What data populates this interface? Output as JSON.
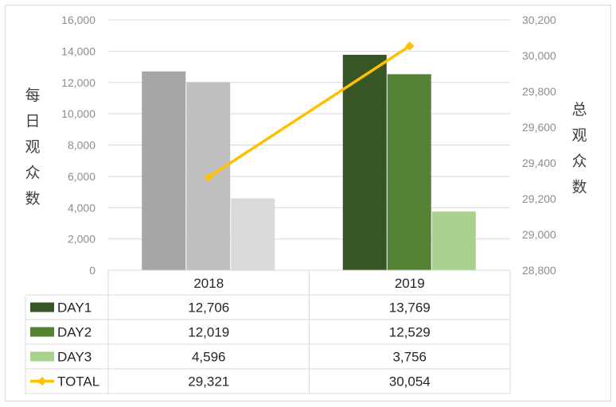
{
  "chart_data": {
    "type": "bar",
    "categories": [
      "2018",
      "2019"
    ],
    "series": [
      {
        "name": "DAY1",
        "values": [
          12706,
          13769
        ],
        "axis": "left",
        "colors": [
          "#a6a6a6",
          "#375623"
        ],
        "legend_color": "#375623"
      },
      {
        "name": "DAY2",
        "values": [
          12019,
          12529
        ],
        "axis": "left",
        "colors": [
          "#bfbfbf",
          "#548235"
        ],
        "legend_color": "#548235"
      },
      {
        "name": "DAY3",
        "values": [
          4596,
          3756
        ],
        "axis": "left",
        "colors": [
          "#d9d9d9",
          "#a9d18e"
        ],
        "legend_color": "#a9d18e"
      },
      {
        "name": "TOTAL",
        "values": [
          29321,
          30054
        ],
        "axis": "right",
        "type": "line",
        "color": "#ffc000",
        "legend_color": "#ffc000"
      }
    ],
    "table_values": [
      [
        "12,706",
        "13,769"
      ],
      [
        "12,019",
        "12,529"
      ],
      [
        "4,596",
        "3,756"
      ],
      [
        "29,321",
        "30,054"
      ]
    ],
    "y_left": {
      "title": "每日观众数",
      "ylim": [
        0,
        16000
      ],
      "ticks": [
        "0",
        "2,000",
        "4,000",
        "6,000",
        "8,000",
        "10,000",
        "12,000",
        "14,000",
        "16,000"
      ]
    },
    "y_right": {
      "title": "总观众数",
      "ylim": [
        28800,
        30200
      ],
      "ticks": [
        "28,800",
        "29,000",
        "29,200",
        "29,400",
        "29,600",
        "29,800",
        "30,000",
        "30,200"
      ]
    },
    "grid": true,
    "legend": "data-table"
  }
}
